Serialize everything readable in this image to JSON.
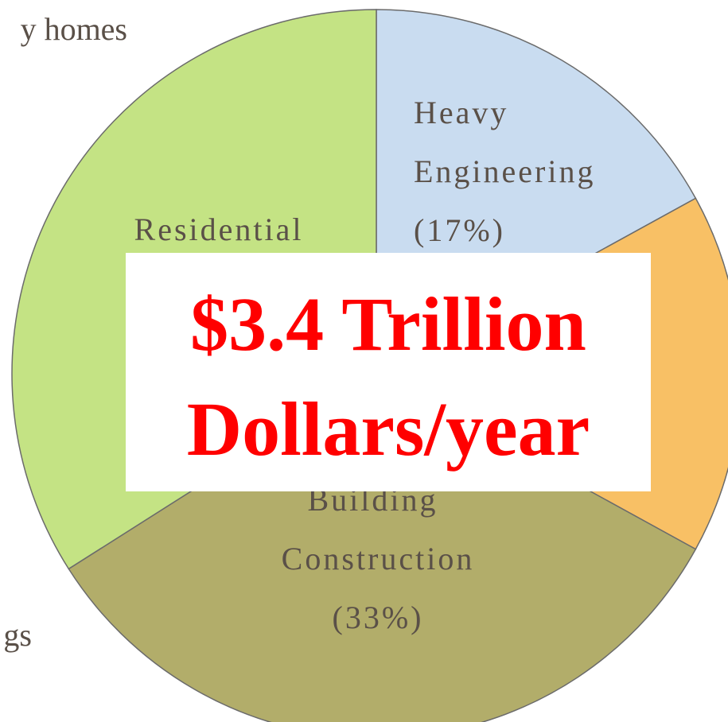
{
  "chart_data": {
    "type": "pie",
    "categories": [
      "Heavy Engineering",
      null,
      "Building Construction",
      "Residential"
    ],
    "values": [
      17,
      16,
      33,
      34
    ],
    "value_labels": [
      "(17%)",
      null,
      "(33%)",
      null
    ],
    "colors": [
      "#c9dcf0",
      "#f8c065",
      "#b2ad6a",
      "#c4e384"
    ],
    "annotations": [
      "y homes",
      "gs"
    ],
    "callout": [
      "$3.4 Trillion",
      "Dollars/year"
    ]
  }
}
